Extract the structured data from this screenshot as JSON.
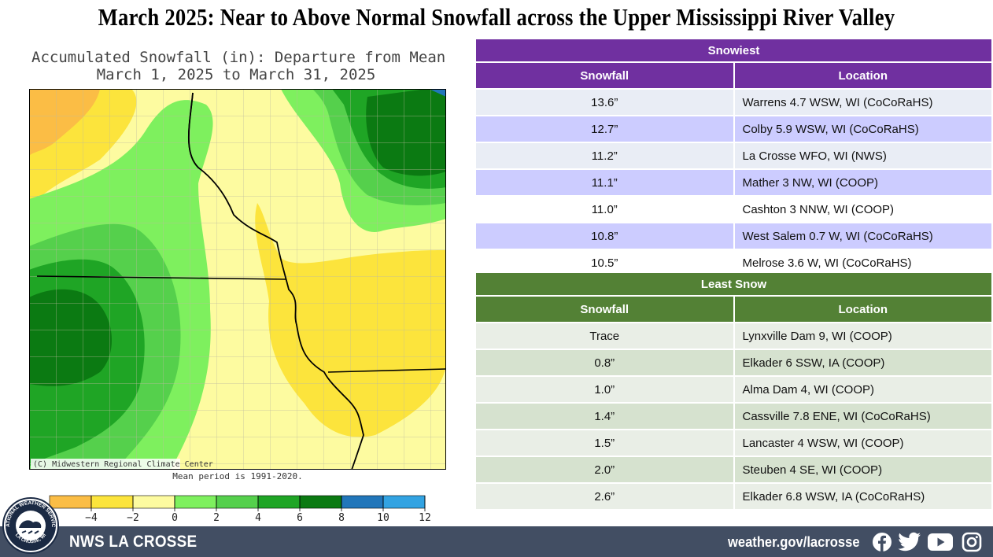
{
  "title": "March 2025:  Near to Above Normal Snowfall across the Upper Mississippi River Valley",
  "map": {
    "title_line1": "Accumulated Snowfall (in): Departure from Mean",
    "title_line2": "March 1, 2025 to March 31, 2025",
    "credit": "(C) Midwestern Regional Climate Center",
    "mean_period": "Mean period is 1991-2020.",
    "legend": {
      "ticks": [
        "−4",
        "−2",
        "0",
        "2",
        "4",
        "6",
        "8",
        "10",
        "12"
      ],
      "colors": [
        "#fbbd45",
        "#fce43c",
        "#fdfba0",
        "#7ef05e",
        "#55d04c",
        "#1fa525",
        "#0b7a12",
        "#2176ba",
        "#32a3e2"
      ]
    },
    "colors": {
      "orange": "#fbbd45",
      "yellow": "#fce43c",
      "pale_yellow": "#fdfba0",
      "light_green": "#7ef05e",
      "medium_green": "#55d04c",
      "green": "#1fa525",
      "dark_green": "#0b7a12",
      "blue": "#2176ba"
    }
  },
  "snowiest": {
    "section_title": "Snowiest",
    "col_snowfall": "Snowfall",
    "col_location": "Location",
    "header_color": "#7030a0",
    "rows": [
      {
        "snowfall": "13.6”",
        "location": "Warrens 4.7 WSW, WI (CoCoRaHS)",
        "color": "#e9edf5"
      },
      {
        "snowfall": "12.7”",
        "location": "Colby 5.9 WSW, WI (CoCoRaHS)",
        "color": "#ccccff"
      },
      {
        "snowfall": "11.2”",
        "location": "La Crosse WFO, WI (NWS)",
        "color": "#e9edf5"
      },
      {
        "snowfall": "11.1”",
        "location": "Mather 3 NW, WI (COOP)",
        "color": "#ccccff"
      },
      {
        "snowfall": "11.0”",
        "location": "Cashton 3 NNW, WI (COOP)",
        "color": "#ffffff"
      },
      {
        "snowfall": "10.8”",
        "location": "West Salem 0.7 W, WI (CoCoRaHS)",
        "color": "#ccccff"
      },
      {
        "snowfall": "10.5”",
        "location": "Melrose 3.6 W, WI (CoCoRaHS)",
        "color": "#ffffff"
      }
    ]
  },
  "least": {
    "section_title": "Least Snow",
    "col_snowfall": "Snowfall",
    "col_location": "Location",
    "header_color": "#538135",
    "rows": [
      {
        "snowfall": "Trace",
        "location": "Lynxville Dam 9, WI (COOP)",
        "color": "#e9eee6"
      },
      {
        "snowfall": "0.8”",
        "location": "Elkader 6 SSW, IA (COOP)",
        "color": "#d6e2cf"
      },
      {
        "snowfall": "1.0”",
        "location": "Alma Dam 4, WI (COOP)",
        "color": "#e9eee6"
      },
      {
        "snowfall": "1.4”",
        "location": "Cassville 7.8 ENE, WI (CoCoRaHS)",
        "color": "#d6e2cf"
      },
      {
        "snowfall": "1.5”",
        "location": "Lancaster 4 WSW, WI (COOP)",
        "color": "#e9eee6"
      },
      {
        "snowfall": "2.0”",
        "location": "Steuben 4 SE, WI (COOP)",
        "color": "#d6e2cf"
      },
      {
        "snowfall": "2.6”",
        "location": "Elkader 6.8 WSW, IA (CoCoRaHS)",
        "color": "#e9eee6"
      }
    ]
  },
  "footer": {
    "name": "NWS LA CROSSE",
    "url": "weather.gov/lacrosse",
    "background": "#424e63",
    "logo_text_top": "NATIONAL WEATHER SERVICE",
    "logo_text_bottom": "LA CROSSE, WI",
    "social_icons": [
      "facebook-icon",
      "twitter-icon",
      "youtube-icon",
      "instagram-icon"
    ]
  }
}
